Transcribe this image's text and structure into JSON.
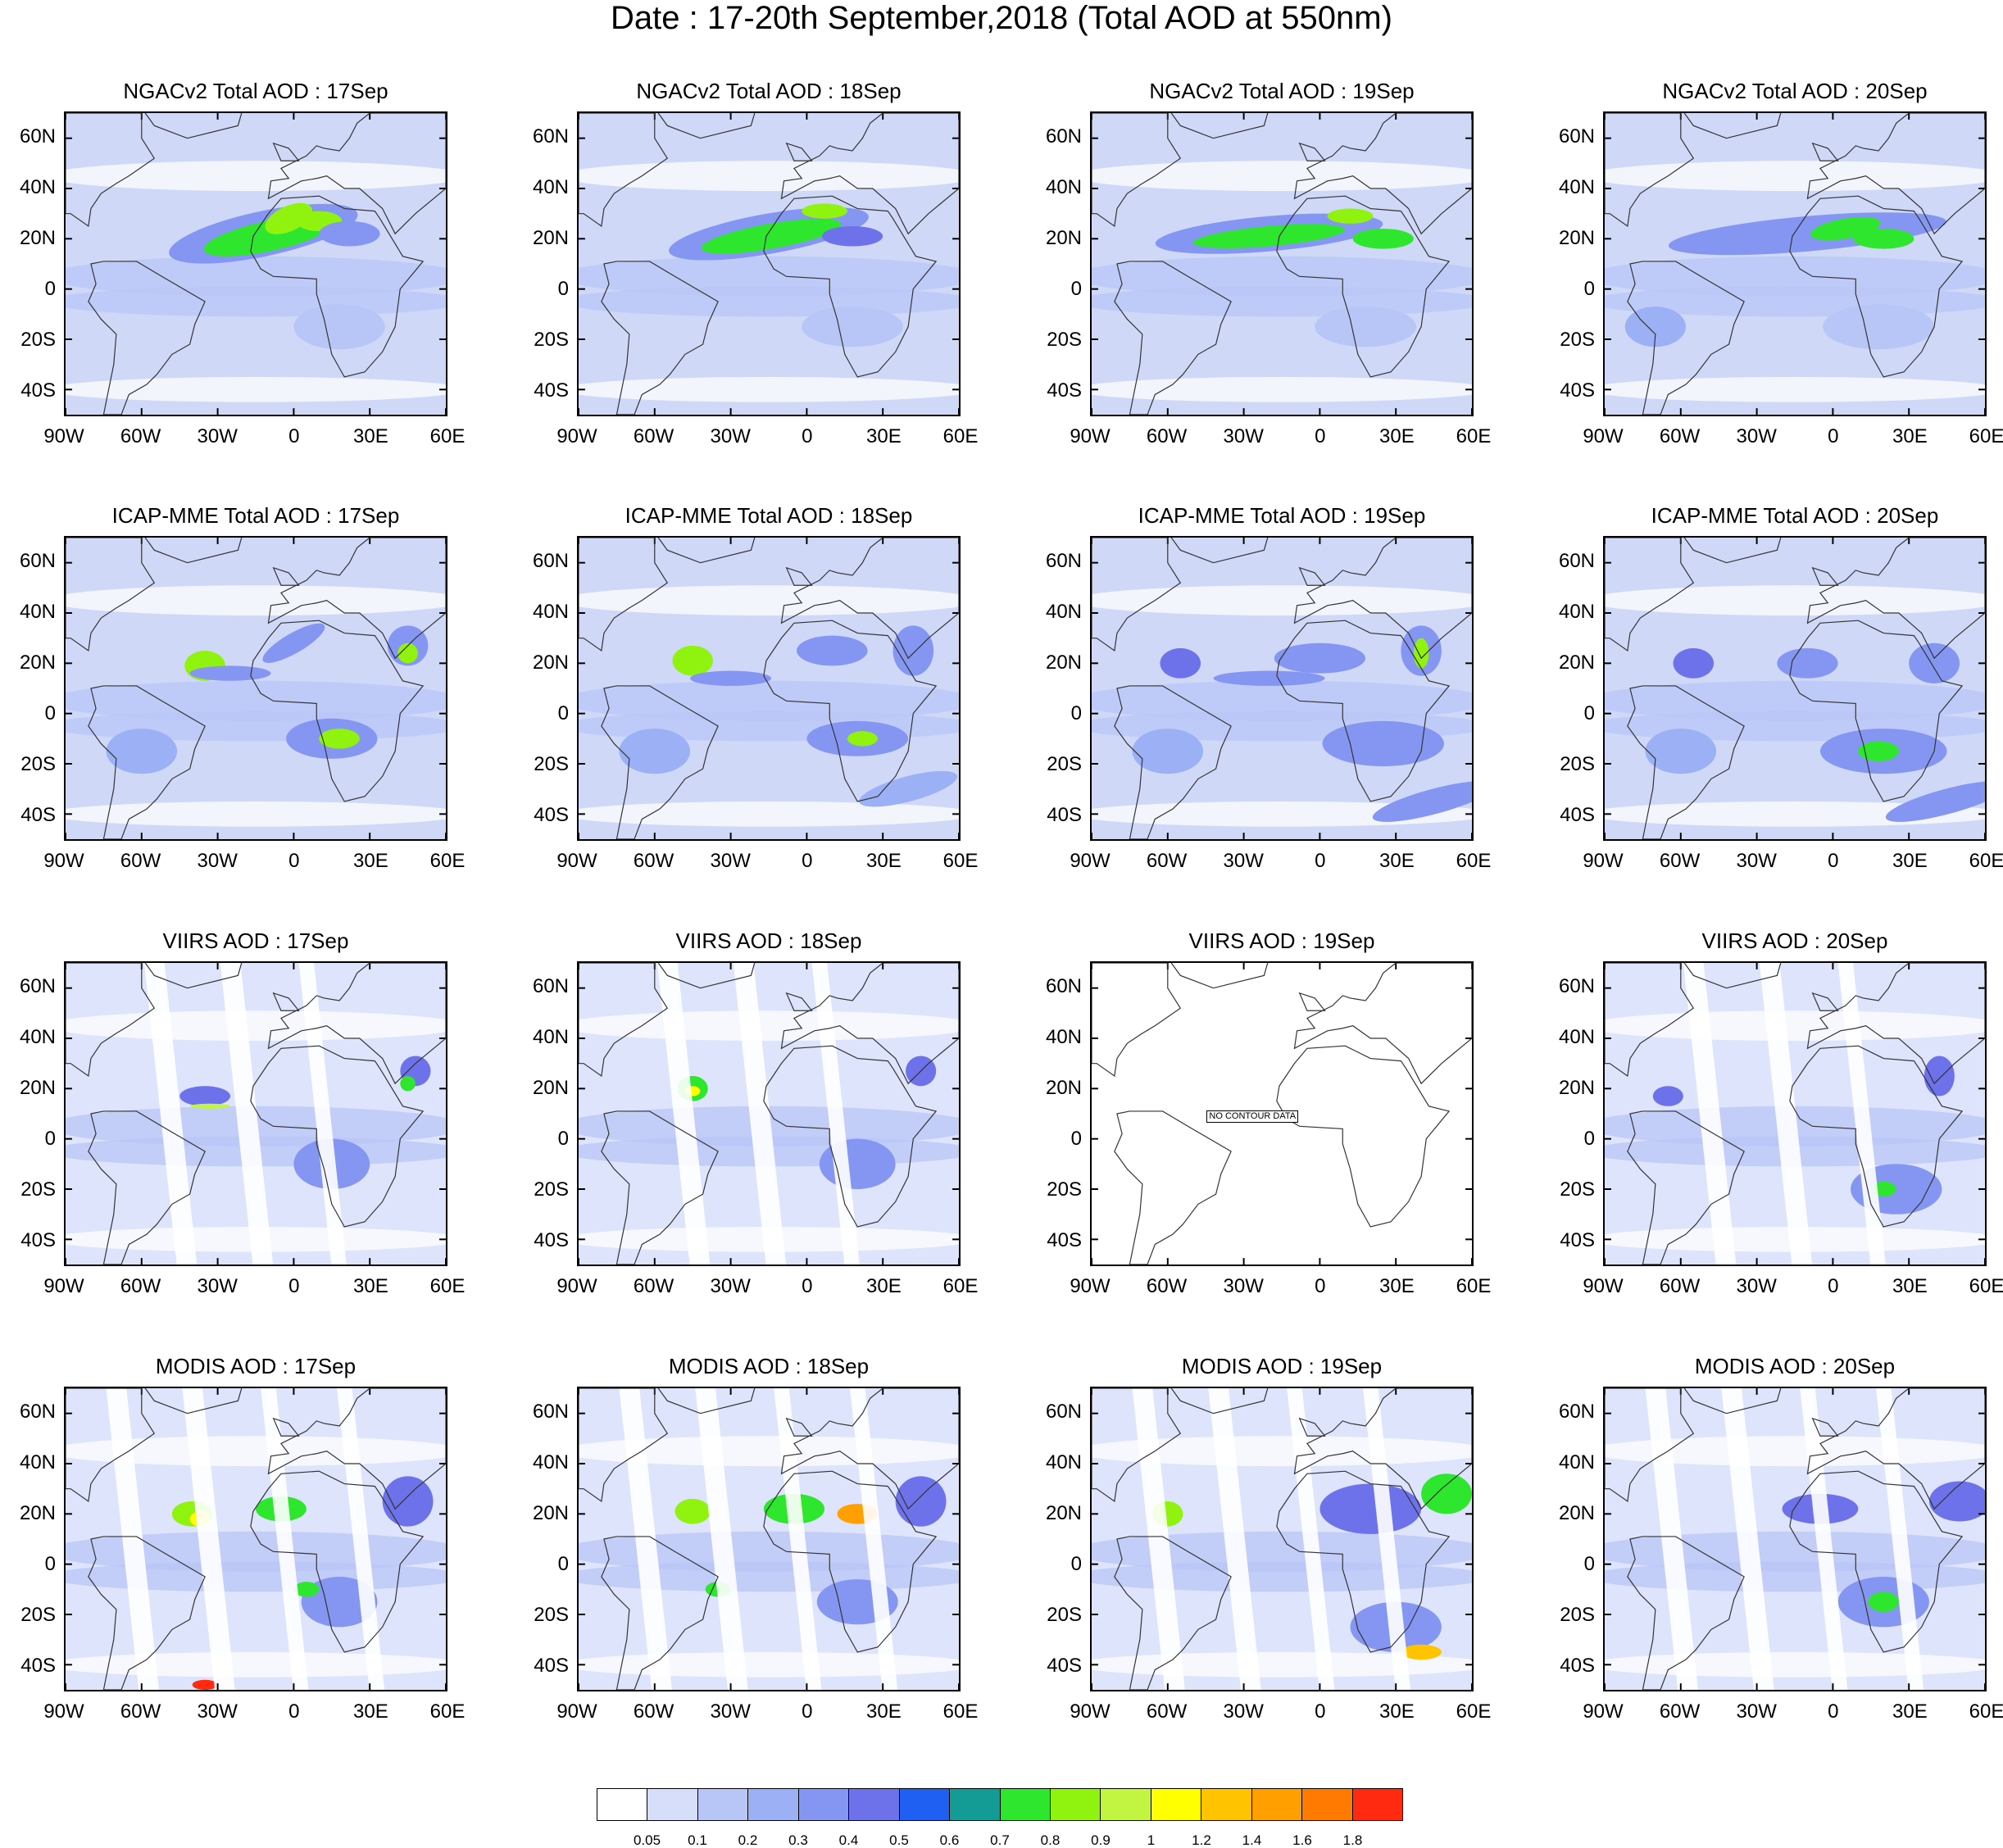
{
  "title": "Date : 17-20th September,2018 (Total AOD at 550nm)",
  "axes": {
    "lat_labels": [
      "60N",
      "40N",
      "20N",
      "0",
      "20S",
      "40S"
    ],
    "lon_labels": [
      "90W",
      "60W",
      "30W",
      "0",
      "30E",
      "60E"
    ],
    "lat_values": [
      60,
      40,
      20,
      0,
      -20,
      -40
    ],
    "lon_values": [
      -90,
      -60,
      -30,
      0,
      30,
      60
    ],
    "lat_range": [
      -50,
      70
    ],
    "lon_range": [
      -90,
      60
    ]
  },
  "rows": [
    {
      "source": "NGACv2",
      "panels": [
        {
          "title": "NGACv2 Total AOD : 17Sep"
        },
        {
          "title": "NGACv2 Total AOD : 18Sep"
        },
        {
          "title": "NGACv2 Total AOD : 19Sep"
        },
        {
          "title": "NGACv2 Total AOD : 20Sep"
        }
      ]
    },
    {
      "source": "ICAP-MME",
      "panels": [
        {
          "title": "ICAP-MME Total AOD : 17Sep"
        },
        {
          "title": "ICAP-MME Total AOD : 18Sep"
        },
        {
          "title": "ICAP-MME Total AOD : 19Sep"
        },
        {
          "title": "ICAP-MME Total AOD : 20Sep"
        }
      ]
    },
    {
      "source": "VIIRS",
      "panels": [
        {
          "title": "VIIRS AOD : 17Sep"
        },
        {
          "title": "VIIRS AOD : 18Sep"
        },
        {
          "title": "VIIRS AOD : 19Sep",
          "no_data_text": "NO CONTOUR DATA"
        },
        {
          "title": "VIIRS AOD : 20Sep"
        }
      ]
    },
    {
      "source": "MODIS",
      "panels": [
        {
          "title": "MODIS AOD : 17Sep"
        },
        {
          "title": "MODIS AOD : 18Sep"
        },
        {
          "title": "MODIS AOD : 19Sep"
        },
        {
          "title": "MODIS AOD : 20Sep"
        }
      ]
    }
  ],
  "colorbar": {
    "labels": [
      "0.05",
      "0.1",
      "0.2",
      "0.3",
      "0.4",
      "0.5",
      "0.6",
      "0.7",
      "0.8",
      "0.9",
      "1",
      "1.2",
      "1.4",
      "1.6",
      "1.8"
    ],
    "colors": [
      "#ffffff",
      "#d6defa",
      "#b8c6f7",
      "#9cb0f5",
      "#8596f2",
      "#6d72ea",
      "#1f5ff2",
      "#129c95",
      "#2ee62e",
      "#8ff20f",
      "#c2f542",
      "#ffff00",
      "#ffc300",
      "#ffa000",
      "#ff7a00",
      "#ff2a0f"
    ]
  }
}
